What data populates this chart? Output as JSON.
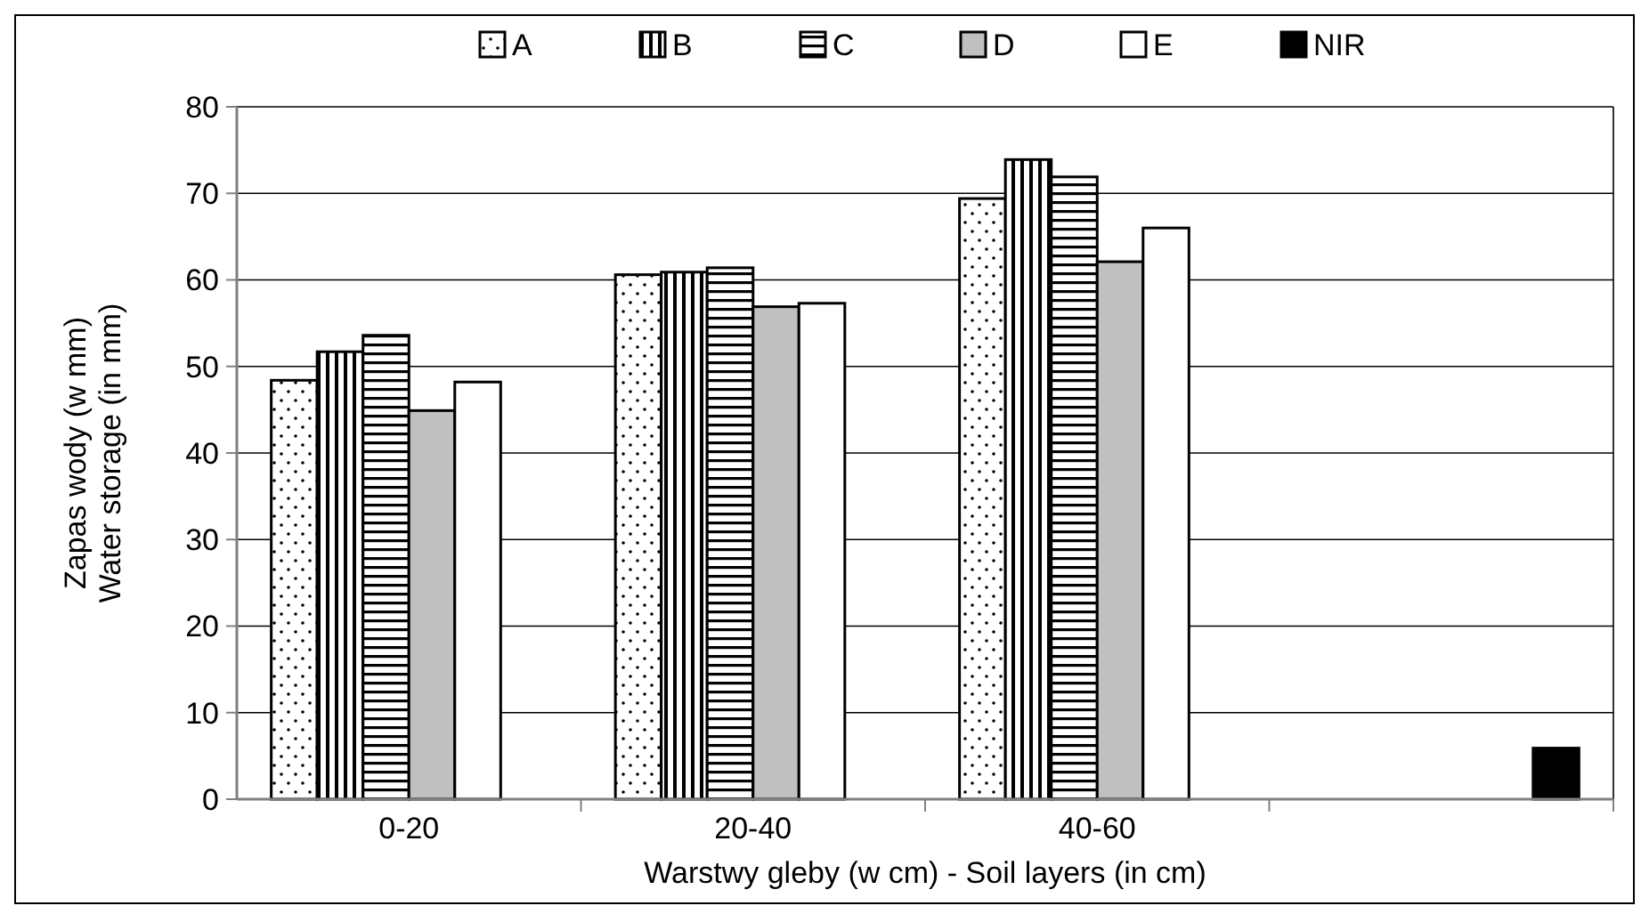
{
  "chart_data": {
    "type": "bar",
    "xlabel": "Warstwy gleby (w cm) - Soil layers (in cm)",
    "ylabel": "Zapas wody (w mm)\nWater storage (in mm)",
    "categories": [
      "0-20",
      "20-40",
      "40-60",
      null
    ],
    "series": [
      {
        "name": "A",
        "color": "#000000",
        "values": [
          48.4,
          60.6,
          69.4,
          null
        ]
      },
      {
        "name": "B",
        "color": "#000000",
        "values": [
          51.7,
          60.9,
          73.9,
          null
        ]
      },
      {
        "name": "C",
        "color": "#000000",
        "values": [
          53.6,
          61.4,
          71.9,
          null
        ]
      },
      {
        "name": "D",
        "color": "#c0c0c0",
        "values": [
          44.9,
          56.9,
          62.1,
          null
        ]
      },
      {
        "name": "E",
        "color": "#ffffff",
        "values": [
          48.2,
          57.3,
          66.0,
          null
        ]
      },
      {
        "name": "NIR",
        "color": "#000000",
        "values": [
          null,
          null,
          null,
          5.9
        ]
      }
    ],
    "ylim": [
      0,
      80
    ],
    "yticks": [
      0,
      10,
      20,
      30,
      40,
      50,
      60,
      70,
      80
    ],
    "grid": "y",
    "legend": "top"
  }
}
